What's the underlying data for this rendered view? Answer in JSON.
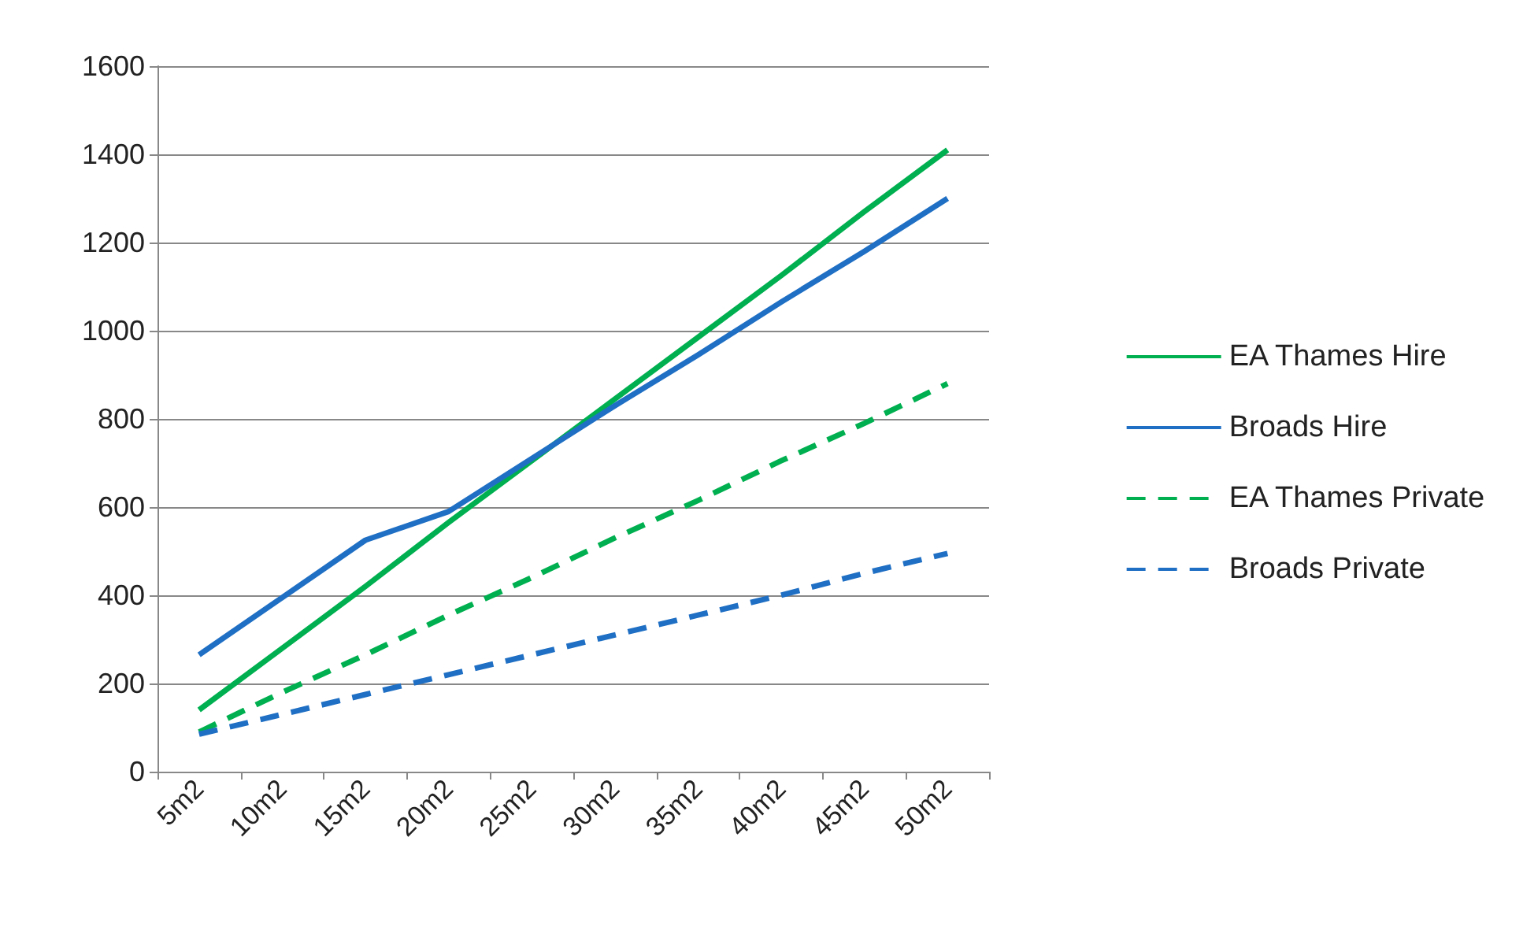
{
  "chart_data": {
    "type": "line",
    "categories": [
      "5m2",
      "10m2",
      "15m2",
      "20m2",
      "25m2",
      "30m2",
      "35m2",
      "40m2",
      "45m2",
      "50m2"
    ],
    "series": [
      {
        "name": "EA Thames Hire",
        "color": "#00b050",
        "line_style": "solid",
        "values": [
          140,
          280,
          420,
          565,
          705,
          845,
          985,
          1125,
          1270,
          1410
        ]
      },
      {
        "name": "Broads Hire",
        "color": "#1f6fc4",
        "line_style": "solid",
        "values": [
          265,
          395,
          525,
          590,
          710,
          830,
          945,
          1065,
          1180,
          1300
        ]
      },
      {
        "name": "EA Thames Private",
        "color": "#00b050",
        "line_style": "dashed",
        "values": [
          90,
          180,
          265,
          355,
          440,
          530,
          615,
          705,
          790,
          880
        ]
      },
      {
        "name": "Broads Private",
        "color": "#1f6fc4",
        "line_style": "dashed",
        "values": [
          85,
          130,
          175,
          220,
          265,
          310,
          355,
          400,
          450,
          495
        ]
      }
    ],
    "ylim": [
      0,
      1600
    ],
    "yticks": [
      0,
      200,
      400,
      600,
      800,
      1000,
      1200,
      1400,
      1600
    ],
    "grid": "y",
    "legend": "right",
    "marker": "none"
  }
}
